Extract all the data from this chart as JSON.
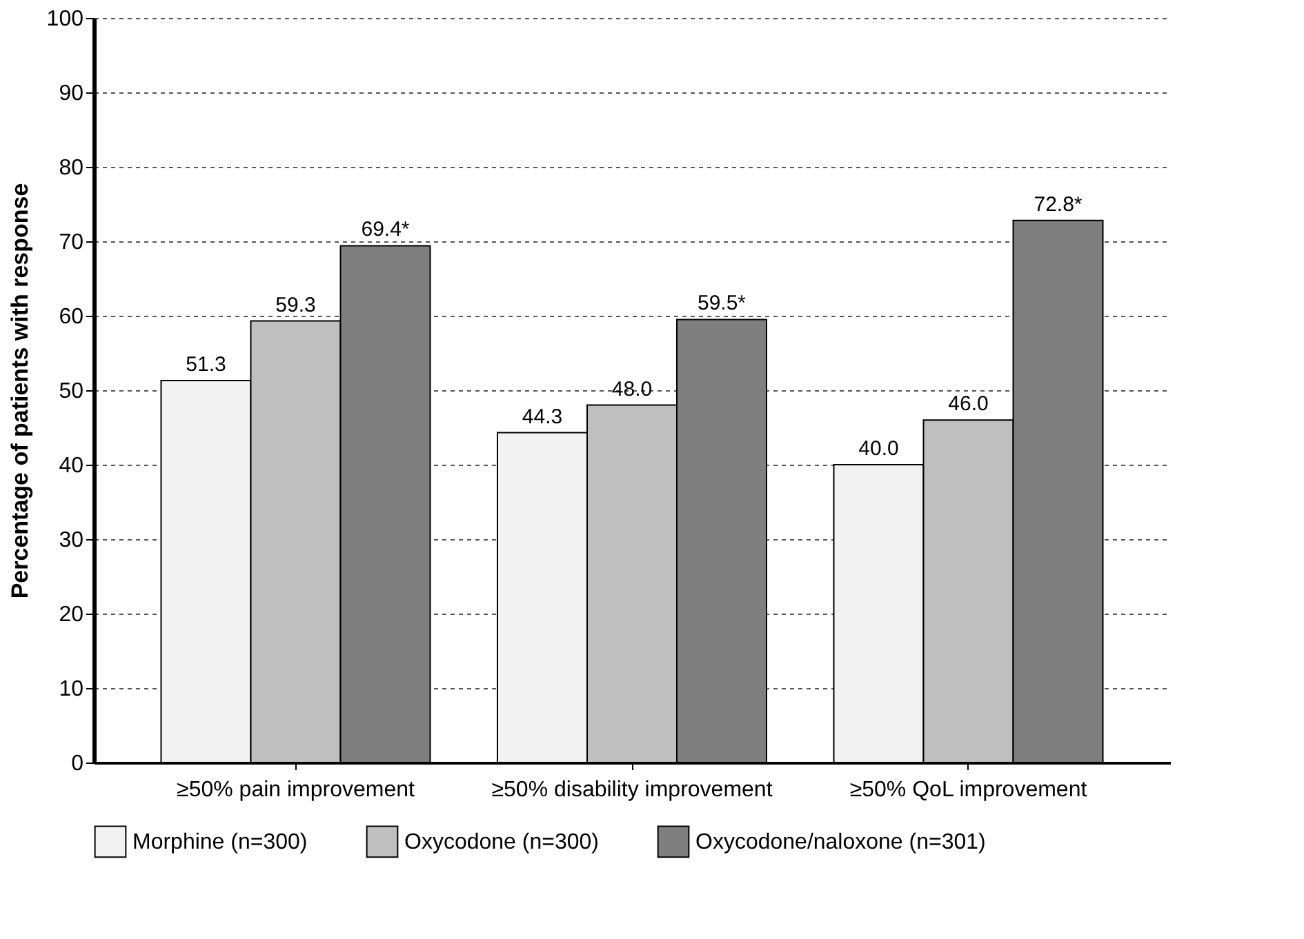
{
  "chart_data": {
    "type": "bar",
    "ylabel": "Percentage of patients with response",
    "categories": [
      "≥50% pain improvement",
      "≥50% disability improvement",
      "≥50% QoL improvement"
    ],
    "series": [
      {
        "name": "Morphine (n=300)",
        "color": "#f2f2f2",
        "values": [
          51.3,
          44.3,
          40.0
        ],
        "value_labels": [
          "51.3",
          "44.3",
          "40.0"
        ]
      },
      {
        "name": "Oxycodone (n=300)",
        "color": "#bfbfbf",
        "values": [
          59.3,
          48.0,
          46.0
        ],
        "value_labels": [
          "59.3",
          "48.0",
          "46.0"
        ]
      },
      {
        "name": "Oxycodone/naloxone (n=301)",
        "color": "#7f7f7f",
        "values": [
          69.4,
          59.5,
          72.8
        ],
        "value_labels": [
          "69.4*",
          "59.5*",
          "72.8*"
        ]
      }
    ],
    "ylim": [
      0,
      100
    ],
    "yticks": [
      0,
      10,
      20,
      30,
      40,
      50,
      60,
      70,
      80,
      90,
      100
    ],
    "grid": "y",
    "legend": "bottom"
  }
}
